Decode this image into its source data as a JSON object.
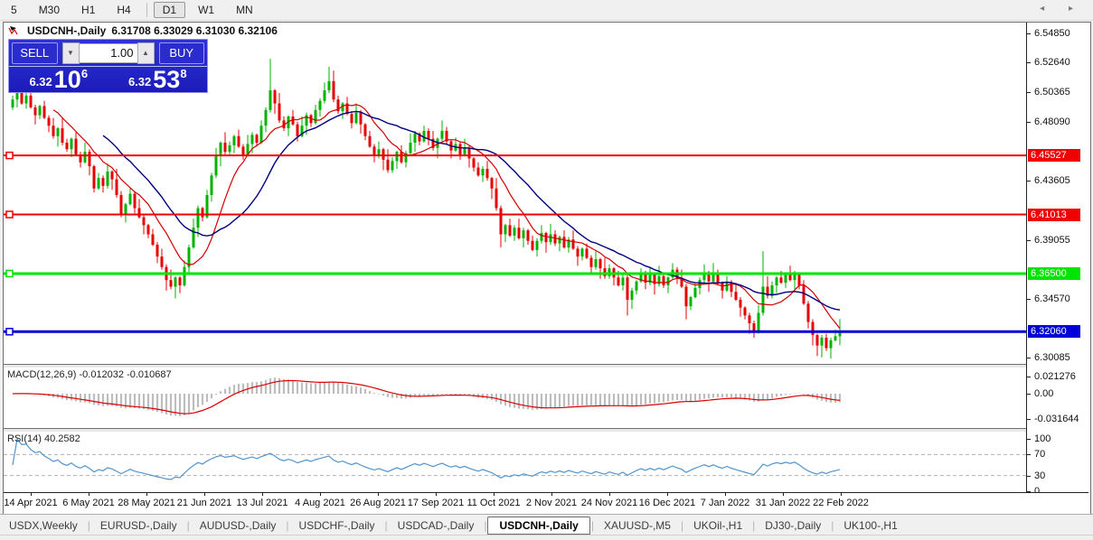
{
  "toolbar": {
    "timeframes": [
      "5",
      "M30",
      "H1",
      "H4",
      "D1",
      "W1",
      "MN"
    ],
    "active_timeframe": "D1"
  },
  "chart": {
    "title": "USDCNH-,Daily",
    "ohlc": "6.31708 6.33029 6.31030 6.32106"
  },
  "trade": {
    "sell_label": "SELL",
    "buy_label": "BUY",
    "volume": "1.00",
    "sell": {
      "prefix": "6.32",
      "big": "10",
      "sup": "6"
    },
    "buy": {
      "prefix": "6.32",
      "big": "53",
      "sup": "8"
    }
  },
  "price_axis": {
    "ticks": [
      "6.54850",
      "6.52640",
      "6.50365",
      "6.48090",
      "6.43605",
      "6.39055",
      "6.34570",
      "6.30085"
    ]
  },
  "hlines": [
    {
      "label": "6.45527",
      "price": 6.45527,
      "color": "#f00000",
      "width": 2
    },
    {
      "label": "6.41013",
      "price": 6.41013,
      "color": "#f00000",
      "width": 2
    },
    {
      "label": "6.36500",
      "price": 6.365,
      "color": "#00e400",
      "width": 3
    },
    {
      "label": "6.32060",
      "price": 6.3206,
      "color": "#0000d8",
      "width": 3
    }
  ],
  "indicators": {
    "macd": {
      "title_label": "MACD(12,26,9)",
      "values": "-0.012032 -0.010687",
      "axis": [
        "0.021276",
        "0.00",
        "-0.031644"
      ],
      "fast": 12,
      "slow": 26,
      "signal": 9,
      "hist_color": "#bdbdbd",
      "signal_color": "#dd0000"
    },
    "rsi": {
      "title_label": "RSI(14)",
      "value": "40.2582",
      "axis": [
        "100",
        "70",
        "30",
        "0"
      ],
      "period": 14,
      "levels": [
        70,
        30
      ],
      "line_color": "#4f94cd"
    }
  },
  "dates": [
    "14 Apr 2021",
    "6 May 2021",
    "28 May 2021",
    "21 Jun 2021",
    "13 Jul 2021",
    "4 Aug 2021",
    "26 Aug 2021",
    "17 Sep 2021",
    "11 Oct 2021",
    "2 Nov 2021",
    "24 Nov 2021",
    "16 Dec 2021",
    "7 Jan 2022",
    "31 Jan 2022",
    "22 Feb 2022"
  ],
  "tabs": {
    "items": [
      "USDX,Weekly",
      "EURUSD-,Daily",
      "AUDUSD-,Daily",
      "USDCHF-,Daily",
      "USDCAD-,Daily",
      "USDCNH-,Daily",
      "XAUUSD-,M5",
      "UKOil-,H1",
      "DJ30-,Daily",
      "UK100-,H1"
    ],
    "active_index": 5,
    "scroll_left": "◂",
    "scroll_right": "▸"
  },
  "chart_data": {
    "type": "candlestick",
    "symbol": "USDCNH",
    "timeframe": "Daily",
    "up_color": "#00b300",
    "down_color": "#e60000",
    "ma_fast": {
      "period": 10,
      "color": "#d40000"
    },
    "ma_slow": {
      "period": 21,
      "color": "#000080"
    },
    "first_open": 6.492,
    "closes": [
      6.498,
      6.503,
      6.495,
      6.501,
      6.492,
      6.486,
      6.493,
      6.484,
      6.478,
      6.47,
      6.476,
      6.465,
      6.46,
      6.468,
      6.456,
      6.45,
      6.458,
      6.447,
      6.43,
      6.438,
      6.432,
      6.443,
      6.437,
      6.425,
      6.41,
      6.418,
      6.426,
      6.415,
      6.408,
      6.402,
      6.395,
      6.387,
      6.378,
      6.37,
      6.36,
      6.355,
      6.362,
      6.356,
      6.37,
      6.385,
      6.4,
      6.415,
      6.408,
      6.425,
      6.44,
      6.455,
      6.465,
      6.458,
      6.463,
      6.47,
      6.462,
      6.456,
      6.464,
      6.471,
      6.465,
      6.478,
      6.49,
      6.505,
      6.495,
      6.482,
      6.476,
      6.485,
      6.479,
      6.47,
      6.478,
      6.486,
      6.48,
      6.49,
      6.497,
      6.505,
      6.512,
      6.498,
      6.489,
      6.495,
      6.487,
      6.48,
      6.488,
      6.479,
      6.47,
      6.462,
      6.455,
      6.46,
      6.452,
      6.444,
      6.451,
      6.458,
      6.45,
      6.457,
      6.465,
      6.472,
      6.466,
      6.474,
      6.468,
      6.461,
      6.468,
      6.474,
      6.466,
      6.459,
      6.464,
      6.456,
      6.461,
      6.453,
      6.446,
      6.44,
      6.445,
      6.438,
      6.43,
      6.415,
      6.395,
      6.402,
      6.394,
      6.4,
      6.392,
      6.398,
      6.39,
      6.383,
      6.39,
      6.396,
      6.389,
      6.395,
      6.388,
      6.393,
      6.385,
      6.391,
      6.384,
      6.378,
      6.384,
      6.377,
      6.37,
      6.376,
      6.369,
      6.363,
      6.369,
      6.362,
      6.356,
      6.362,
      6.345,
      6.352,
      6.359,
      6.365,
      6.358,
      6.364,
      6.357,
      6.363,
      6.356,
      6.362,
      6.368,
      6.361,
      6.355,
      6.34,
      6.347,
      6.354,
      6.36,
      6.366,
      6.359,
      6.365,
      6.358,
      6.352,
      6.358,
      6.351,
      6.345,
      6.339,
      6.333,
      6.327,
      6.321,
      6.335,
      6.355,
      6.348,
      6.356,
      6.362,
      6.358,
      6.364,
      6.36,
      6.365,
      6.356,
      6.342,
      6.328,
      6.318,
      6.31,
      6.316,
      6.308,
      6.314,
      6.3171,
      6.3211
    ],
    "wick_up": [
      0.003,
      0.001,
      0.005,
      0.002,
      0.007,
      0.002,
      0.001,
      0.004,
      0.002,
      0.006,
      0.001,
      0.008
    ],
    "wick_dn": [
      0.002,
      0.006,
      0.001,
      0.004,
      0.001,
      0.007,
      0.003,
      0.001,
      0.005,
      0.002,
      0.008,
      0.002
    ],
    "wick_overrides": {
      "34": [
        0.002,
        0.008
      ],
      "36": [
        0.001,
        0.009
      ],
      "57": [
        0.024,
        0.002
      ],
      "70": [
        0.011,
        0.002
      ],
      "108": [
        0.002,
        0.01
      ],
      "136": [
        0.003,
        0.012
      ],
      "149": [
        0.002,
        0.01
      ],
      "163": [
        0.002,
        0.008
      ],
      "166": [
        0.027,
        0.002
      ],
      "177": [
        0.002,
        0.008
      ],
      "179": [
        0.002,
        0.009
      ],
      "181": [
        0.002,
        0.008
      ],
      "183": [
        0.0092,
        0.0068
      ]
    }
  }
}
